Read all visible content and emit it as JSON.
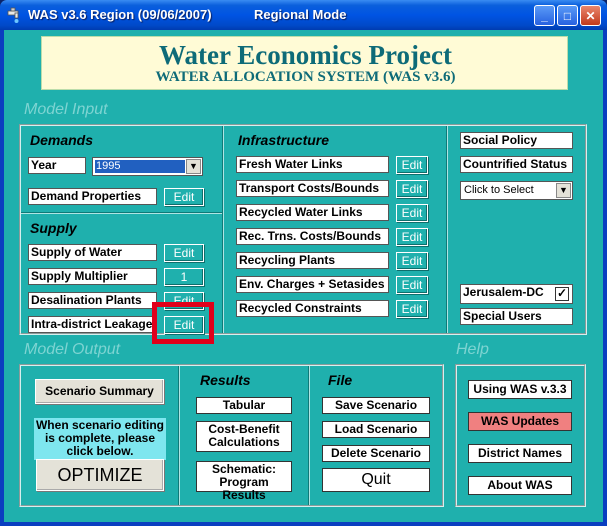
{
  "window": {
    "title": "WAS v3.6 Region (09/06/2007)",
    "mode": "Regional Mode",
    "controls": {
      "minimize": "_",
      "maximize": "□",
      "close": "✕"
    }
  },
  "banner": {
    "title": "Water Economics Project",
    "subtitle": "WATER ALLOCATION SYSTEM (WAS v3.6)"
  },
  "sections": {
    "model_input": "Model Input",
    "model_output": "Model Output",
    "help": "Help"
  },
  "demands": {
    "title": "Demands",
    "year_label": "Year",
    "year_value": "1995",
    "demand_properties": "Demand Properties",
    "edit": "Edit"
  },
  "supply": {
    "title": "Supply",
    "supply_of_water": "Supply of Water",
    "supply_multiplier": "Supply Multiplier",
    "multiplier_value": "1",
    "desalination_plants": "Desalination Plants",
    "intra_district_leakage": "Intra-district Leakage",
    "edit": "Edit"
  },
  "infrastructure": {
    "title": "Infrastructure",
    "items": [
      "Fresh Water Links",
      "Transport Costs/Bounds",
      "Recycled Water Links",
      "Rec. Trns. Costs/Bounds",
      "Recycling Plants",
      "Env. Charges + Setasides",
      "Recycled Constraints"
    ],
    "edit": "Edit"
  },
  "policy": {
    "social_policy": "Social Policy",
    "countrified_status": "Countrified Status",
    "click_to_select": "Click to Select",
    "jerusalem_dc": "Jerusalem-DC",
    "jerusalem_checked": true,
    "special_users": "Special Users"
  },
  "output": {
    "scenario_summary": "Scenario Summary",
    "optimize_note": "When scenario editing is complete, please click below.",
    "optimize": "OPTIMIZE",
    "results_title": "Results",
    "tabular": "Tabular",
    "cost_benefit": "Cost-Benefit Calculations",
    "schematic": "Schematic: Program Results",
    "file_title": "File",
    "save_scenario": "Save Scenario",
    "load_scenario": "Load Scenario",
    "delete_scenario": "Delete Scenario",
    "quit": "Quit"
  },
  "help": {
    "using_was": "Using WAS v.3.3",
    "was_updates": "WAS Updates",
    "district_names": "District Names",
    "about_was": "About WAS"
  },
  "colors": {
    "background": "#1fb0ad",
    "banner_text": "#0e6b78",
    "highlight": "#e0001a",
    "updates_button": "#f08080"
  }
}
